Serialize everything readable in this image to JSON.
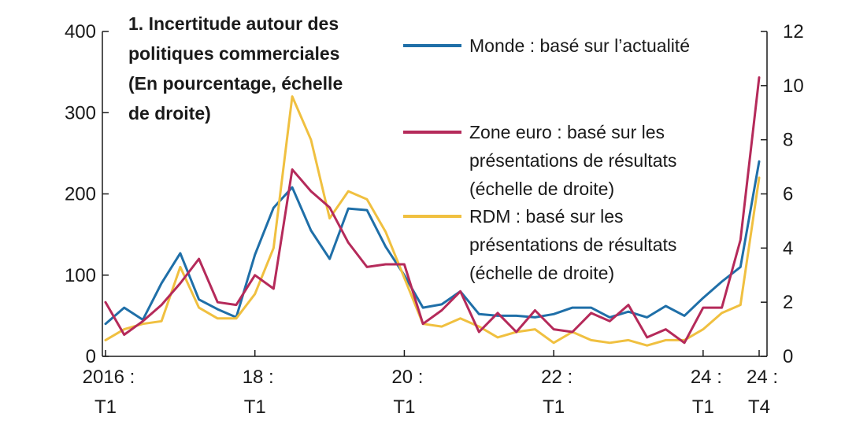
{
  "chart_data": {
    "type": "line",
    "title": [
      "1. Incertitude autour des",
      "politiques commerciales",
      "(En pourcentage, échelle",
      "de droite)"
    ],
    "x_ticks": [
      {
        "index": 0,
        "line1": "2016 :",
        "line2": "T1"
      },
      {
        "index": 8,
        "line1": "18 :",
        "line2": "T1"
      },
      {
        "index": 16,
        "line1": "20 :",
        "line2": "T1"
      },
      {
        "index": 24,
        "line1": "22 :",
        "line2": "T1"
      },
      {
        "index": 32,
        "line1": "24 :",
        "line2": "T1"
      },
      {
        "index": 35,
        "line1": "24 :",
        "line2": "T4"
      }
    ],
    "left_axis": {
      "min": 0,
      "max": 400,
      "ticks": [
        "0",
        "100",
        "200",
        "300",
        "400"
      ]
    },
    "right_axis": {
      "min": 0,
      "max": 12,
      "ticks": [
        "0",
        "2",
        "4",
        "6",
        "8",
        "10",
        "12"
      ]
    },
    "series": [
      {
        "name": "Monde : basé sur l’actualité",
        "color": "#1f6fa8",
        "axis": "left",
        "values": [
          40,
          60,
          45,
          90,
          127,
          70,
          58,
          48,
          125,
          183,
          208,
          155,
          120,
          182,
          180,
          135,
          100,
          60,
          64,
          80,
          52,
          50,
          50,
          48,
          52,
          60,
          60,
          48,
          55,
          48,
          62,
          50,
          72,
          92,
          110,
          240
        ]
      },
      {
        "name": [
          "Zone euro : basé sur les",
          "présentations de résultats",
          "(échelle de droite)"
        ],
        "color": "#b52a5a",
        "axis": "right",
        "values": [
          2.0,
          0.8,
          1.3,
          1.9,
          2.7,
          3.6,
          2.0,
          1.9,
          3.0,
          2.5,
          6.9,
          6.1,
          5.5,
          4.2,
          3.3,
          3.4,
          3.4,
          1.2,
          1.7,
          2.4,
          0.9,
          1.6,
          0.9,
          1.7,
          1.0,
          0.9,
          1.6,
          1.3,
          1.9,
          0.7,
          1.0,
          0.5,
          1.8,
          1.8,
          4.3,
          10.3
        ]
      },
      {
        "name": [
          "RDM : basé sur les",
          "présentations de résultats",
          "(échelle de droite)"
        ],
        "color": "#f0c040",
        "axis": "right",
        "values": [
          0.6,
          1.0,
          1.2,
          1.3,
          3.3,
          1.8,
          1.4,
          1.4,
          2.3,
          4.0,
          9.6,
          8.0,
          5.1,
          6.1,
          5.8,
          4.6,
          2.9,
          1.2,
          1.1,
          1.4,
          1.1,
          0.7,
          0.9,
          1.0,
          0.5,
          0.9,
          0.6,
          0.5,
          0.6,
          0.4,
          0.6,
          0.6,
          1.0,
          1.6,
          1.9,
          6.6
        ]
      }
    ]
  }
}
